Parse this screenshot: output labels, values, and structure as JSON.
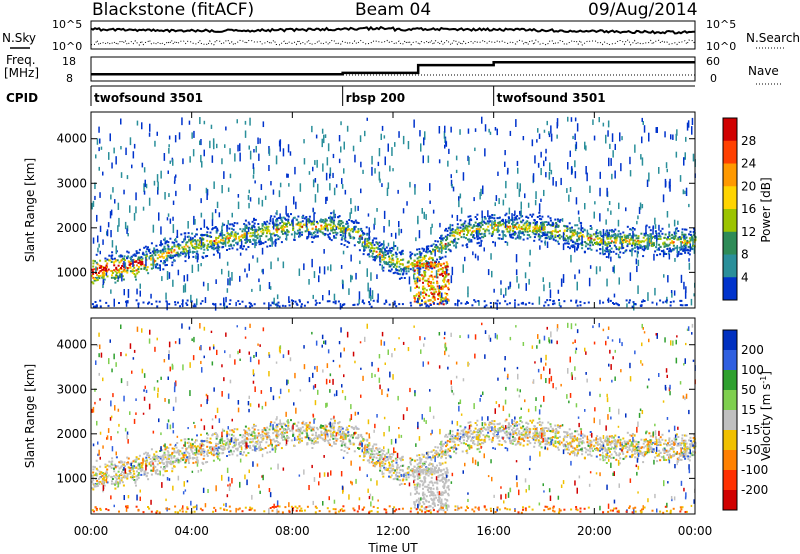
{
  "header": {
    "station": "Blackstone (fitACF)",
    "beam": "Beam 04",
    "date": "09/Aug/2014"
  },
  "side_labels": {
    "nsky": "N.Sky",
    "nsearch": "N.Search",
    "freq_line1": "Freq.",
    "freq_line2": "[MHz]",
    "nave": "Nave",
    "cpid": "CPID"
  },
  "noise_axis": {
    "left_ticks": [
      "10^5",
      "10^0"
    ],
    "right_ticks": [
      "10^5",
      "10^0"
    ]
  },
  "freq_axis": {
    "left_ticks": [
      "18",
      "8"
    ],
    "right_ticks": [
      "60",
      "0"
    ]
  },
  "cpid_segments": [
    {
      "label": "twofsound 3501",
      "start_hr": 0,
      "end_hr": 10.0
    },
    {
      "label": "rbsp 200",
      "start_hr": 10.0,
      "end_hr": 16.0
    },
    {
      "label": "twofsound 3501",
      "start_hr": 16.0,
      "end_hr": 24.0
    }
  ],
  "freq_trace": [
    {
      "t": 0,
      "mhz": 10.8
    },
    {
      "t": 10.0,
      "mhz": 11.4
    },
    {
      "t": 13.0,
      "mhz": 14.6
    },
    {
      "t": 16.0,
      "mhz": 15.8
    },
    {
      "t": 24.0,
      "mhz": 15.8
    }
  ],
  "chart_data": [
    {
      "type": "heatmap",
      "panel": "power",
      "xlabel": "",
      "ylabel": "Slant Range [km]",
      "xlim": [
        0,
        24
      ],
      "ylim": [
        200,
        4600
      ],
      "yticks": [
        "1000",
        "2000",
        "3000",
        "4000"
      ],
      "colorbar_label": "Power [dB]",
      "colorbar_ticks": [
        "28",
        "24",
        "20",
        "16",
        "12",
        "8",
        "4"
      ],
      "colorbar_colors": [
        "#d00000",
        "#ff4000",
        "#ff9900",
        "#ffd400",
        "#9cc400",
        "#2e8b57",
        "#2a8f9a",
        "#0033cc"
      ],
      "echo_band": [
        {
          "t": 0,
          "km": 1050
        },
        {
          "t": 2,
          "km": 1250
        },
        {
          "t": 4,
          "km": 1650
        },
        {
          "t": 6,
          "km": 1850
        },
        {
          "t": 8,
          "km": 2050
        },
        {
          "t": 9.5,
          "km": 2050
        },
        {
          "t": 10.5,
          "km": 1900
        },
        {
          "t": 11.5,
          "km": 1400
        },
        {
          "t": 12.5,
          "km": 1150
        },
        {
          "t": 13.5,
          "km": 1400
        },
        {
          "t": 14.5,
          "km": 1900
        },
        {
          "t": 16,
          "km": 2050
        },
        {
          "t": 18,
          "km": 2000
        },
        {
          "t": 20,
          "km": 1750
        },
        {
          "t": 22,
          "km": 1700
        },
        {
          "t": 24,
          "km": 1700
        }
      ]
    },
    {
      "type": "heatmap",
      "panel": "velocity",
      "xlabel": "Time UT",
      "ylabel": "Slant Range [km]",
      "xlim": [
        0,
        24
      ],
      "ylim": [
        200,
        4600
      ],
      "xticks": [
        "00:00",
        "04:00",
        "08:00",
        "12:00",
        "16:00",
        "20:00",
        "00:00"
      ],
      "yticks": [
        "1000",
        "2000",
        "3000",
        "4000"
      ],
      "colorbar_label": "Velocity [m s",
      "colorbar_label_sup": "-1",
      "colorbar_label_end": "]",
      "colorbar_ticks": [
        "200",
        "100",
        "50",
        "15",
        "-15",
        "-50",
        "-100",
        "-200"
      ],
      "colorbar_colors": [
        "#0030c0",
        "#3060e0",
        "#2fa02f",
        "#7fcf4f",
        "#c0c0c0",
        "#f0c000",
        "#ff8000",
        "#ff3000",
        "#d00000"
      ]
    }
  ]
}
